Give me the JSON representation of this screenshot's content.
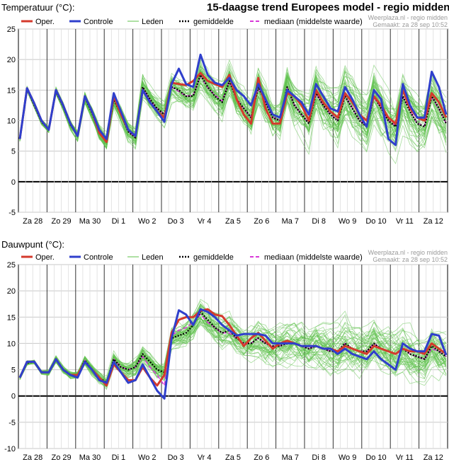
{
  "page": {
    "main_title": "15-daagse trend Europees model - regio midden"
  },
  "colors": {
    "oper": "#d43a2c",
    "controle": "#2f3fcc",
    "leden": "#5cc14a",
    "gemiddelde": "#000000",
    "mediaan": "#d838d8"
  },
  "chart_data": [
    {
      "type": "line",
      "title": "Temperatuur (°C):",
      "credit_line1": "Weerplaza.nl - regio midden",
      "credit_line2": "Gemaakt: za 28 sep 10:52",
      "ylim": [
        -5,
        25
      ],
      "yticks": [
        -5,
        0,
        5,
        10,
        15,
        20,
        25
      ],
      "day_labels": [
        "Za 28",
        "Zo 29",
        "Ma 30",
        "Di 1",
        "Wo 2",
        "Do 3",
        "Vr 4",
        "Za 5",
        "Zo 6",
        "Ma 7",
        "Di 8",
        "Wo 9",
        "Do 10",
        "Vr 11",
        "Za 12"
      ],
      "legend": [
        "Oper.",
        "Controle",
        "Leden",
        "gemiddelde",
        "mediaan (middelste waarde)"
      ],
      "series": [
        {
          "name": "Oper.",
          "style": "oper",
          "values": [
            7,
            15.3,
            12.8,
            10,
            8.5,
            15,
            12.5,
            9.5,
            7.5,
            14,
            11.5,
            8,
            6.5,
            14,
            11,
            8.5,
            7.5,
            15,
            13,
            11.5,
            10.5,
            16.2,
            16,
            15.8,
            16.5,
            17.8,
            16.5,
            16,
            15.5,
            17.5,
            13.5,
            11,
            9.5,
            17,
            12,
            9.5,
            9.5,
            14.5,
            14,
            12.5,
            10,
            15,
            13,
            11.5,
            10.5,
            14.5,
            13,
            11,
            10,
            14,
            12.5,
            10.5,
            9.5,
            15,
            12,
            10.5,
            10,
            14.5,
            13,
            10.5
          ]
        },
        {
          "name": "Controle",
          "style": "controle",
          "values": [
            7,
            15.3,
            12.8,
            10,
            8.5,
            15,
            12.5,
            9.5,
            7.5,
            14,
            11.5,
            8.5,
            7,
            14.5,
            11.5,
            8.5,
            7.5,
            15,
            13,
            11.5,
            9.8,
            16,
            18.5,
            16,
            15.5,
            20.8,
            17.5,
            16.2,
            15.8,
            17,
            15,
            14,
            12.5,
            16,
            13.5,
            11,
            10.5,
            15,
            14,
            13,
            11,
            16,
            14,
            12,
            11.5,
            15.5,
            13.5,
            11,
            9,
            15,
            13.5,
            7,
            6,
            16,
            12.5,
            10.5,
            10.5,
            18,
            15.5,
            11
          ]
        },
        {
          "name": "gemiddelde",
          "style": "gemiddelde",
          "values": [
            7,
            15.2,
            12.5,
            9.8,
            8.5,
            14.8,
            12.3,
            9.3,
            7.5,
            13.8,
            11.2,
            8,
            6.5,
            13.5,
            11,
            8.2,
            7.2,
            15.5,
            13.5,
            12,
            11,
            15.5,
            15,
            14,
            14,
            17.5,
            15.5,
            14,
            13,
            16.5,
            13.5,
            12,
            10.5,
            15.5,
            13,
            10.5,
            10,
            15.5,
            12.5,
            11,
            9.5,
            14.5,
            12.5,
            11,
            10,
            14,
            12,
            10,
            9,
            14,
            12,
            10,
            9,
            14,
            11.5,
            9.5,
            9,
            14,
            12,
            9.5
          ]
        },
        {
          "name": "mediaan (middelste waarde)",
          "style": "mediaan",
          "values": [
            7,
            15.2,
            12.5,
            9.8,
            8.5,
            14.8,
            12.3,
            9.3,
            7.5,
            13.8,
            11.2,
            8,
            6.5,
            13.6,
            11,
            8.2,
            7.2,
            15.4,
            13.4,
            12,
            11,
            15.5,
            14.8,
            14,
            14.2,
            17.3,
            15.4,
            14.2,
            13.2,
            16.4,
            13.6,
            12,
            10.6,
            15.3,
            13.1,
            10.6,
            10,
            15.3,
            12.6,
            11,
            9.6,
            14.4,
            12.4,
            11,
            10,
            14.1,
            12.1,
            10.1,
            9.1,
            13.8,
            12,
            10,
            9.2,
            13.9,
            11.6,
            9.6,
            9.1,
            13.9,
            11.9,
            9.6
          ]
        }
      ]
    },
    {
      "type": "line",
      "title": "Dauwpunt (°C):",
      "credit_line1": "Weerplaza.nl - regio midden",
      "credit_line2": "Gemaakt: za 28 sep 10:52",
      "ylim": [
        -10,
        25
      ],
      "yticks": [
        -10,
        -5,
        0,
        5,
        10,
        15,
        20,
        25
      ],
      "day_labels": [
        "Za 28",
        "Zo 29",
        "Ma 30",
        "Di 1",
        "Wo 2",
        "Do 3",
        "Vr 4",
        "Za 5",
        "Zo 6",
        "Ma 7",
        "Di 8",
        "Wo 9",
        "Do 10",
        "Vr 11",
        "Za 12"
      ],
      "legend": [
        "Oper.",
        "Controle",
        "Leden",
        "gemiddelde",
        "mediaan (middelste waarde)"
      ],
      "series": [
        {
          "name": "Oper.",
          "style": "oper",
          "values": [
            3.5,
            6.5,
            6.5,
            4.5,
            4.5,
            7,
            5,
            4,
            4,
            6.5,
            5,
            3.5,
            2,
            6,
            4.5,
            3,
            3,
            5.5,
            3.5,
            2,
            4,
            12,
            14.5,
            15,
            15,
            16.2,
            16.5,
            15.5,
            15.2,
            13.5,
            11.5,
            9.5,
            11,
            12,
            10.5,
            9,
            10,
            10.5,
            10,
            9.5,
            9.5,
            9.5,
            9,
            9,
            8.5,
            9.5,
            9,
            8.5,
            8,
            9.5,
            9,
            8.5,
            8,
            9,
            8.5,
            8.5,
            8,
            10,
            9,
            8
          ]
        },
        {
          "name": "Controle",
          "style": "controle",
          "values": [
            3.5,
            6.5,
            6.5,
            4.5,
            4.5,
            7,
            5,
            4,
            3.5,
            6.5,
            5,
            3,
            2.5,
            6.5,
            4.5,
            2.5,
            3,
            6,
            3.5,
            1,
            -0.5,
            11,
            16.3,
            15.5,
            13.5,
            16.5,
            16,
            15,
            13.5,
            12.5,
            11.5,
            11.8,
            11.8,
            11.8,
            11.5,
            10,
            10,
            10,
            10,
            9.5,
            9.5,
            9.5,
            9,
            9,
            8,
            9,
            8,
            7.5,
            7,
            8.5,
            7,
            6,
            5,
            10,
            9,
            8.5,
            8.5,
            11.8,
            11.5,
            7.8
          ]
        },
        {
          "name": "gemiddelde",
          "style": "gemiddelde",
          "values": [
            3.5,
            6.3,
            6.5,
            4.5,
            4.5,
            7,
            5,
            4,
            4,
            6.8,
            5,
            3.5,
            2.5,
            7,
            5.5,
            5,
            5.5,
            8,
            6.5,
            5,
            4.5,
            11,
            11.5,
            12,
            13.5,
            16,
            14.5,
            13,
            12,
            12.5,
            11,
            10,
            10,
            11,
            10,
            9.5,
            9.5,
            10,
            10,
            9.5,
            9,
            9.5,
            9,
            8.5,
            8.5,
            10,
            9,
            8.5,
            8.5,
            10,
            9,
            8.5,
            8,
            9,
            8,
            7.5,
            7,
            9.5,
            8.5,
            7.5
          ]
        },
        {
          "name": "mediaan (middelste waarde)",
          "style": "mediaan",
          "values": [
            3.5,
            6.3,
            6.5,
            4.5,
            4.5,
            7,
            5,
            4,
            4,
            6.8,
            5,
            3.5,
            2.5,
            7,
            5.5,
            5,
            5.5,
            7.5,
            5.5,
            4,
            2,
            11.5,
            12.5,
            13,
            14,
            15.5,
            14,
            13,
            12,
            12,
            11,
            10,
            10,
            11,
            10,
            9.5,
            9.5,
            10,
            10,
            9.5,
            9,
            9.5,
            9,
            8.5,
            8.5,
            10,
            9,
            8.5,
            8.5,
            10,
            9,
            8.5,
            8,
            9,
            8,
            7.5,
            7,
            9,
            8.5,
            7.5
          ]
        }
      ]
    }
  ]
}
